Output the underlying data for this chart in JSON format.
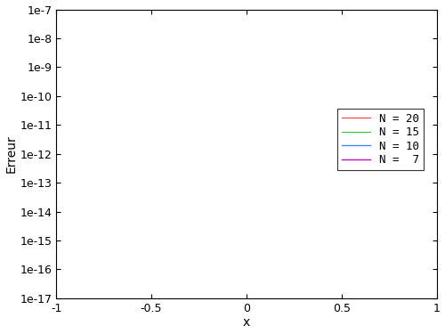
{
  "xlabel": "x",
  "ylabel": "Erreur",
  "xlim": [
    -1,
    1
  ],
  "ylim_log": [
    -17,
    -7
  ],
  "colors": {
    "20": "#ff0000",
    "15": "#00bb00",
    "10": "#4488ff",
    "7": "#cc00cc"
  },
  "legend_labels": [
    "N = 20",
    "N = 15",
    "N = 10",
    "N =  7"
  ],
  "background_color": "#ffffff",
  "num_points": 3000,
  "noise_seed": 1234
}
